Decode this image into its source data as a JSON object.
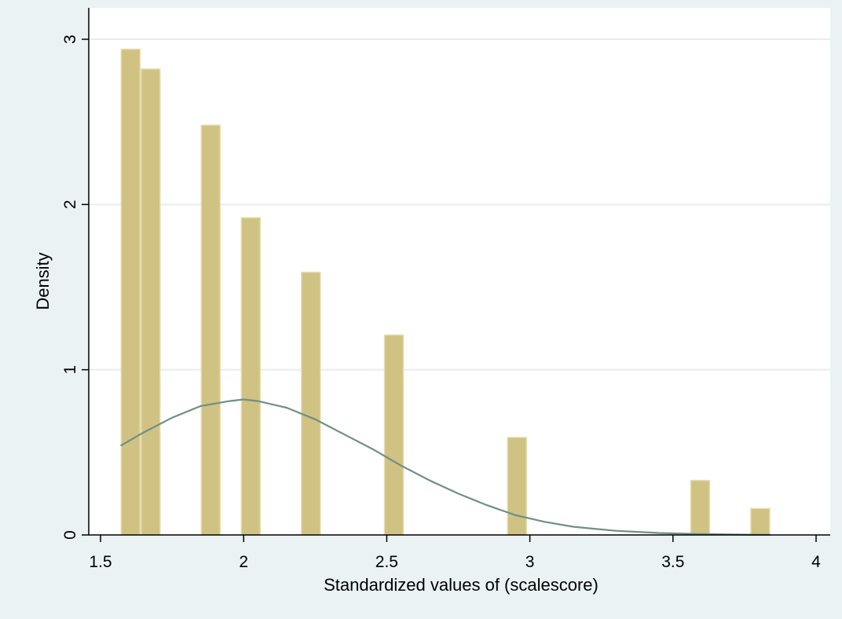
{
  "chart_data": {
    "type": "bar",
    "xlabel": "Standardized values of (scalescore)",
    "ylabel": "Density",
    "xlim": [
      1.5,
      4
    ],
    "ylim": [
      0,
      3
    ],
    "x_ticks": [
      "1.5",
      "2",
      "2.5",
      "3",
      "3.5",
      "4"
    ],
    "y_ticks": [
      "0",
      "1",
      "2",
      "3"
    ],
    "grid": "horizontal",
    "bin_width": 0.07,
    "bars": [
      {
        "x_start": 1.57,
        "x_end": 1.64,
        "density": 2.94
      },
      {
        "x_start": 1.64,
        "x_end": 1.71,
        "density": 2.82
      },
      {
        "x_start": 1.85,
        "x_end": 1.92,
        "density": 2.48
      },
      {
        "x_start": 1.99,
        "x_end": 2.06,
        "density": 1.92
      },
      {
        "x_start": 2.2,
        "x_end": 2.27,
        "density": 1.59
      },
      {
        "x_start": 2.49,
        "x_end": 2.56,
        "density": 1.21
      },
      {
        "x_start": 2.92,
        "x_end": 2.99,
        "density": 0.59
      },
      {
        "x_start": 3.56,
        "x_end": 3.63,
        "density": 0.33
      },
      {
        "x_start": 3.77,
        "x_end": 3.84,
        "density": 0.16
      }
    ],
    "density_curve": {
      "type": "line",
      "x": [
        1.57,
        1.65,
        1.75,
        1.85,
        1.95,
        2.0,
        2.05,
        2.15,
        2.25,
        2.35,
        2.45,
        2.55,
        2.65,
        2.75,
        2.85,
        2.95,
        3.05,
        3.15,
        3.3,
        3.45,
        3.6,
        3.75,
        3.84
      ],
      "y": [
        0.54,
        0.62,
        0.71,
        0.78,
        0.81,
        0.82,
        0.81,
        0.77,
        0.7,
        0.61,
        0.52,
        0.42,
        0.33,
        0.25,
        0.18,
        0.12,
        0.08,
        0.05,
        0.025,
        0.012,
        0.005,
        0.002,
        0.001
      ]
    },
    "colors": {
      "bar_fill": "#cfc283",
      "bar_stroke": "#e6dcae",
      "curve": "#708f86",
      "plot_bg": "#ffffff",
      "outer_bg": "#eaf2f3",
      "grid": "#e6eef0",
      "axis": "#000000"
    }
  }
}
